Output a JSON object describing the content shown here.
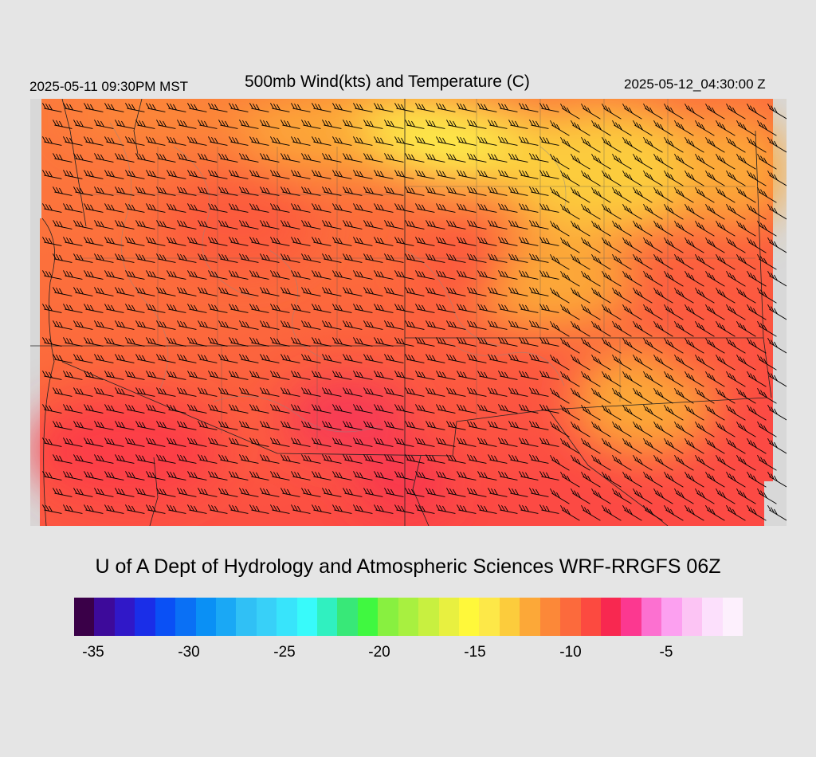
{
  "header": {
    "local_time": "2025-05-11 09:30PM MST",
    "title": "500mb Wind(kts) and Temperature (C)",
    "valid_time": "2025-05-12_04:30:00 Z"
  },
  "footer": {
    "credit": "U of A Dept of Hydrology and Atmospheric Sciences WRF-RRGFS 06Z"
  },
  "colorbar": {
    "colors": [
      "#3a0048",
      "#3d0a9a",
      "#3018c8",
      "#1a2ee8",
      "#0a50f5",
      "#0a70f5",
      "#0a90f5",
      "#1aa8f5",
      "#30c0f5",
      "#38d0f8",
      "#38e4fb",
      "#38fafa",
      "#30f0c0",
      "#38e878",
      "#40f840",
      "#88f040",
      "#a8f040",
      "#c8f040",
      "#e8f040",
      "#fff83a",
      "#fde848",
      "#fccc3c",
      "#fca838",
      "#fc8838",
      "#fc6a3c",
      "#fc4a40",
      "#f82850",
      "#fc3890",
      "#fc70d0",
      "#fca0f0",
      "#fcc4f4",
      "#fce0fc",
      "#fdf0fd"
    ],
    "tick_labels": [
      "-35",
      "-30",
      "-25",
      "-20",
      "-15",
      "-10",
      "-5"
    ]
  },
  "map": {
    "field": "500mb temperature (C) with wind barbs (kts)",
    "dominant_colors": [
      "#fc6a3c",
      "#fc4a40",
      "#fca838",
      "#fccc3c",
      "#fde848"
    ]
  }
}
